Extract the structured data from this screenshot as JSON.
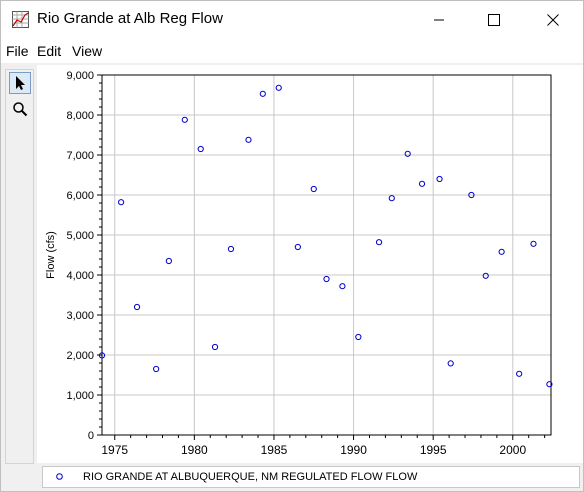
{
  "window": {
    "title": "Rio Grande at Alb Reg Flow"
  },
  "menu": {
    "file": "File",
    "edit": "Edit",
    "view": "View"
  },
  "toolbar": {
    "select_icon": "arrow-pointer-icon",
    "zoom_icon": "magnifier-icon"
  },
  "colors": {
    "marker": "#0000cc",
    "grid": "#c8c8c8",
    "select_bg": "#dce9f7"
  },
  "legend": {
    "label": "RIO GRANDE AT ALBUQUERQUE, NM REGULATED FLOW FLOW"
  },
  "chart_data": {
    "type": "scatter",
    "title": "",
    "xlabel": "",
    "ylabel": "Flow (cfs)",
    "xlim": [
      1974.2,
      2002.4
    ],
    "ylim": [
      0,
      9000
    ],
    "xticks": [
      1975,
      1980,
      1985,
      1990,
      1995,
      2000
    ],
    "xtick_labels": [
      "1975",
      "1980",
      "1985",
      "1990",
      "1995",
      "2000"
    ],
    "yticks": [
      0,
      1000,
      2000,
      3000,
      4000,
      5000,
      6000,
      7000,
      8000,
      9000
    ],
    "ytick_labels": [
      "0",
      "1,000",
      "2,000",
      "3,000",
      "4,000",
      "5,000",
      "6,000",
      "7,000",
      "8,000",
      "9,000"
    ],
    "grid": true,
    "legend_position": "bottom",
    "series": [
      {
        "name": "RIO GRANDE AT ALBUQUERQUE, NM REGULATED FLOW FLOW",
        "points": [
          {
            "x": 1974.2,
            "y": 1990
          },
          {
            "x": 1975.4,
            "y": 5820
          },
          {
            "x": 1976.4,
            "y": 3200
          },
          {
            "x": 1977.6,
            "y": 1650
          },
          {
            "x": 1978.4,
            "y": 4350
          },
          {
            "x": 1979.4,
            "y": 7880
          },
          {
            "x": 1980.4,
            "y": 7150
          },
          {
            "x": 1981.3,
            "y": 2200
          },
          {
            "x": 1982.3,
            "y": 4650
          },
          {
            "x": 1983.4,
            "y": 7380
          },
          {
            "x": 1984.3,
            "y": 8530
          },
          {
            "x": 1985.3,
            "y": 8680
          },
          {
            "x": 1986.5,
            "y": 4700
          },
          {
            "x": 1987.5,
            "y": 6150
          },
          {
            "x": 1988.3,
            "y": 3900
          },
          {
            "x": 1989.3,
            "y": 3720
          },
          {
            "x": 1990.3,
            "y": 2450
          },
          {
            "x": 1991.6,
            "y": 4820
          },
          {
            "x": 1992.4,
            "y": 5920
          },
          {
            "x": 1993.4,
            "y": 7030
          },
          {
            "x": 1994.3,
            "y": 6280
          },
          {
            "x": 1995.4,
            "y": 6400
          },
          {
            "x": 1996.1,
            "y": 1790
          },
          {
            "x": 1997.4,
            "y": 6000
          },
          {
            "x": 1998.3,
            "y": 3980
          },
          {
            "x": 1999.3,
            "y": 4580
          },
          {
            "x": 2000.4,
            "y": 1530
          },
          {
            "x": 2001.3,
            "y": 4780
          },
          {
            "x": 2002.3,
            "y": 1270
          }
        ]
      }
    ]
  }
}
